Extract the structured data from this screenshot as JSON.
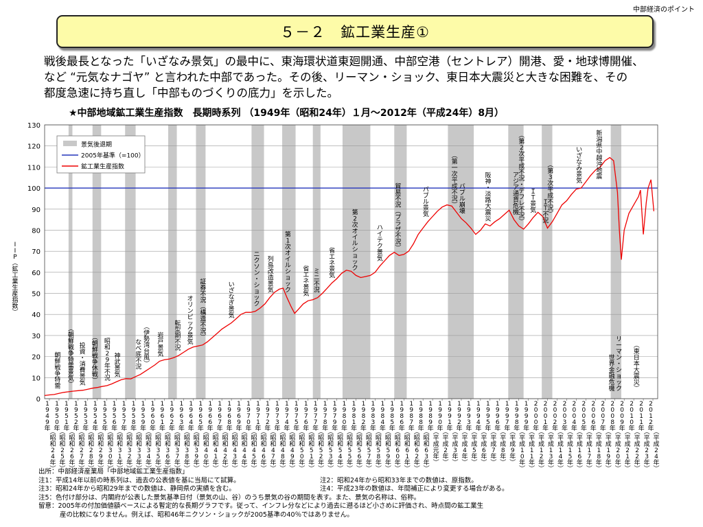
{
  "header": {
    "corner_label": "中部経済のポイント"
  },
  "title": "５－２　鉱工業生産①",
  "intro": [
    "戦後最長となった「いざなみ景気」の最中に、東海環状道東廻開通、中部空港（セントレア）開港、愛・地球博開催、",
    "など “元気なナゴヤ” と言われた中部であった。その後、リーマン・ショック、東日本大震災と大きな困難を、その",
    "都度急速に持ち直し「中部ものづくりの底力」を示した。"
  ],
  "chart_title": "★中部地域鉱工業生産指数　長期時系列 （1949年（昭和24年）１月～2012年（平成24年）8月）",
  "chart_data": {
    "type": "line",
    "ylabel": "IIP（鉱工業生産指数）",
    "ylim": [
      0,
      130
    ],
    "yticks": [
      0,
      10,
      20,
      30,
      40,
      50,
      60,
      70,
      80,
      90,
      100,
      110,
      120,
      130
    ],
    "grid": true,
    "legend_position": "top-left",
    "legend": [
      "景気後退期",
      "2005年基準（=100）",
      "鉱工業生産指数"
    ],
    "colors": {
      "series": "#ee0000",
      "base": "#2233bb",
      "recession": "#c8c8c8",
      "grid": "#999999"
    },
    "base_line": 100,
    "x_categories": [
      {
        "y": "1949年",
        "e": "昭和24年"
      },
      {
        "y": "1950年",
        "e": "昭和25年"
      },
      {
        "y": "1951年",
        "e": "昭和26年"
      },
      {
        "y": "1952年",
        "e": "昭和27年"
      },
      {
        "y": "1953年",
        "e": "昭和28年"
      },
      {
        "y": "1954年",
        "e": "昭和29年"
      },
      {
        "y": "1955年",
        "e": "昭和30年"
      },
      {
        "y": "1956年",
        "e": "昭和31年"
      },
      {
        "y": "1957年",
        "e": "昭和32年"
      },
      {
        "y": "1958年",
        "e": "昭和33年"
      },
      {
        "y": "1959年",
        "e": "昭和34年"
      },
      {
        "y": "1960年",
        "e": "昭和35年"
      },
      {
        "y": "1961年",
        "e": "昭和36年"
      },
      {
        "y": "1962年",
        "e": "昭和37年"
      },
      {
        "y": "1963年",
        "e": "昭和38年"
      },
      {
        "y": "1964年",
        "e": "昭和39年"
      },
      {
        "y": "1965年",
        "e": "昭和40年"
      },
      {
        "y": "1966年",
        "e": "昭和41年"
      },
      {
        "y": "1967年",
        "e": "昭和42年"
      },
      {
        "y": "1968年",
        "e": "昭和43年"
      },
      {
        "y": "1969年",
        "e": "昭和44年"
      },
      {
        "y": "1970年",
        "e": "昭和45年"
      },
      {
        "y": "1971年",
        "e": "昭和46年"
      },
      {
        "y": "1972年",
        "e": "昭和47年"
      },
      {
        "y": "1973年",
        "e": "昭和48年"
      },
      {
        "y": "1974年",
        "e": "昭和49年"
      },
      {
        "y": "1975年",
        "e": "昭和50年"
      },
      {
        "y": "1976年",
        "e": "昭和51年"
      },
      {
        "y": "1977年",
        "e": "昭和52年"
      },
      {
        "y": "1978年",
        "e": "昭和53年"
      },
      {
        "y": "1979年",
        "e": "昭和54年"
      },
      {
        "y": "1980年",
        "e": "昭和55年"
      },
      {
        "y": "1981年",
        "e": "昭和56年"
      },
      {
        "y": "1982年",
        "e": "昭和57年"
      },
      {
        "y": "1983年",
        "e": "昭和58年"
      },
      {
        "y": "1984年",
        "e": "昭和59年"
      },
      {
        "y": "1985年",
        "e": "昭和60年"
      },
      {
        "y": "1986年",
        "e": "昭和61年"
      },
      {
        "y": "1987年",
        "e": "昭和62年"
      },
      {
        "y": "1988年",
        "e": "昭和63年"
      },
      {
        "y": "1989年",
        "e": "平成元年"
      },
      {
        "y": "1990年",
        "e": "平成2年"
      },
      {
        "y": "1991年",
        "e": "平成3年"
      },
      {
        "y": "1992年",
        "e": "平成4年"
      },
      {
        "y": "1993年",
        "e": "平成5年"
      },
      {
        "y": "1994年",
        "e": "平成6年"
      },
      {
        "y": "1995年",
        "e": "平成7年"
      },
      {
        "y": "1996年",
        "e": "平成8年"
      },
      {
        "y": "1997年",
        "e": "平成9年"
      },
      {
        "y": "1998年",
        "e": "平成10年"
      },
      {
        "y": "1999年",
        "e": "平成11年"
      },
      {
        "y": "2000年",
        "e": "平成12年"
      },
      {
        "y": "2001年",
        "e": "平成13年"
      },
      {
        "y": "2002年",
        "e": "平成14年"
      },
      {
        "y": "2003年",
        "e": "平成15年"
      },
      {
        "y": "2004年",
        "e": "平成16年"
      },
      {
        "y": "2005年",
        "e": "平成17年"
      },
      {
        "y": "2006年",
        "e": "平成18年"
      },
      {
        "y": "2007年",
        "e": "平成19年"
      },
      {
        "y": "2008年",
        "e": "平成20年"
      },
      {
        "y": "2009年",
        "e": "平成21年"
      },
      {
        "y": "2010年",
        "e": "平成22年"
      },
      {
        "y": "2011年",
        "e": "平成23年"
      },
      {
        "y": "2012年",
        "e": "平成24年"
      }
    ],
    "recessions": [
      [
        1951.5,
        1951.9
      ],
      [
        1954.0,
        1954.9
      ],
      [
        1957.4,
        1958.5
      ],
      [
        1961.9,
        1962.8
      ],
      [
        1964.8,
        1965.8
      ],
      [
        1970.6,
        1971.9
      ],
      [
        1973.8,
        1975.2
      ],
      [
        1977.0,
        1977.8
      ],
      [
        1980.1,
        1983.0
      ],
      [
        1985.5,
        1986.8
      ],
      [
        1991.1,
        1993.8
      ],
      [
        1997.4,
        1999.0
      ],
      [
        2000.9,
        2002.0
      ],
      [
        2008.1,
        2009.2
      ]
    ],
    "series": [
      {
        "name": "鉱工業生産指数",
        "x": [
          1949.0,
          1949.5,
          1950.0,
          1950.5,
          1951.0,
          1951.5,
          1952.0,
          1952.5,
          1953.0,
          1953.5,
          1954.0,
          1954.5,
          1955.0,
          1955.5,
          1956.0,
          1956.5,
          1957.0,
          1957.5,
          1958.0,
          1958.5,
          1959.0,
          1959.5,
          1960.0,
          1960.5,
          1961.0,
          1961.5,
          1962.0,
          1962.5,
          1963.0,
          1963.5,
          1964.0,
          1964.5,
          1965.0,
          1965.5,
          1966.0,
          1966.5,
          1967.0,
          1967.5,
          1968.0,
          1968.5,
          1969.0,
          1969.5,
          1970.0,
          1970.5,
          1971.0,
          1971.5,
          1972.0,
          1972.5,
          1973.0,
          1973.5,
          1973.9,
          1974.3,
          1974.7,
          1975.1,
          1975.5,
          1976.0,
          1976.5,
          1977.0,
          1977.5,
          1978.0,
          1978.5,
          1979.0,
          1979.5,
          1980.0,
          1980.5,
          1981.0,
          1981.5,
          1982.0,
          1982.5,
          1983.0,
          1983.5,
          1984.0,
          1984.5,
          1985.0,
          1985.5,
          1986.0,
          1986.5,
          1987.0,
          1987.5,
          1988.0,
          1988.5,
          1989.0,
          1989.5,
          1990.0,
          1990.5,
          1991.0,
          1991.5,
          1992.0,
          1992.5,
          1993.0,
          1993.5,
          1994.0,
          1994.5,
          1995.0,
          1995.5,
          1996.0,
          1996.5,
          1997.0,
          1997.5,
          1998.0,
          1998.5,
          1999.0,
          1999.5,
          2000.0,
          2000.5,
          2001.0,
          2001.5,
          2002.0,
          2002.5,
          2003.0,
          2003.5,
          2004.0,
          2004.5,
          2005.0,
          2005.5,
          2006.0,
          2006.5,
          2007.0,
          2007.5,
          2008.0,
          2008.4,
          2008.8,
          2009.0,
          2009.2,
          2009.5,
          2010.0,
          2010.5,
          2011.0,
          2011.2,
          2011.5,
          2011.8,
          2012.0,
          2012.3,
          2012.6
        ],
        "values": [
          1.5,
          1.8,
          2.0,
          2.5,
          3.0,
          3.3,
          3.6,
          3.8,
          4.0,
          4.5,
          5.0,
          5.3,
          5.8,
          6.2,
          7.0,
          8.0,
          9.0,
          9.5,
          9.4,
          10.5,
          11.5,
          13.0,
          14.5,
          16.0,
          17.8,
          18.5,
          18.8,
          19.5,
          20.5,
          22.0,
          23.5,
          24.5,
          25.0,
          25.5,
          27.0,
          29.0,
          31.0,
          33.0,
          34.5,
          36.0,
          38.0,
          40.0,
          41.0,
          41.0,
          41.5,
          43.0,
          45.0,
          48.0,
          50.5,
          52.0,
          52.5,
          48.0,
          44.0,
          40.5,
          42.5,
          45.0,
          46.5,
          47.0,
          48.0,
          50.0,
          52.5,
          55.0,
          57.0,
          59.5,
          61.0,
          60.5,
          58.5,
          57.5,
          58.0,
          58.5,
          60.0,
          63.0,
          65.5,
          68.0,
          69.5,
          68.0,
          68.5,
          70.0,
          73.5,
          78.0,
          81.0,
          84.0,
          86.5,
          89.0,
          91.0,
          92.0,
          91.5,
          88.5,
          85.5,
          83.5,
          81.0,
          78.0,
          80.0,
          83.0,
          82.0,
          84.0,
          85.5,
          87.5,
          89.5,
          85.0,
          82.0,
          80.5,
          83.0,
          86.0,
          88.5,
          86.5,
          81.0,
          84.0,
          88.0,
          92.0,
          94.0,
          97.0,
          99.5,
          100.0,
          103.0,
          106.0,
          108.5,
          110.0,
          113.0,
          114.5,
          113.0,
          98.0,
          80.0,
          66.0,
          80.0,
          88.0,
          92.0,
          96.0,
          99.0,
          78.0,
          93.0,
          100.0,
          104.0,
          89.0
        ]
      }
    ],
    "annotations": [
      {
        "x": 1950.35,
        "text": "朝鮮戦争特需"
      },
      {
        "x": 1951.75,
        "text": "（朝鮮戦争特需景気）"
      },
      {
        "x": 1952.95,
        "text": "投資・消費景気"
      },
      {
        "x": 1954.25,
        "text": "（朝鮮戦争休戦）"
      },
      {
        "x": 1955.55,
        "text": "昭和29年不況"
      },
      {
        "x": 1956.6,
        "text": "神武景気"
      },
      {
        "x": 1958.8,
        "text": "なべ底不況"
      },
      {
        "x": 1959.65,
        "text": "（伊勢湾台風）"
      },
      {
        "x": 1961.1,
        "text": "岩戸景気"
      },
      {
        "x": 1962.9,
        "text": "転型期不況"
      },
      {
        "x": 1964.2,
        "text": "オリンピック景気"
      },
      {
        "x": 1965.55,
        "text": "証券不況（構造不況）"
      },
      {
        "x": 1968.5,
        "text": "いざなぎ景気"
      },
      {
        "x": 1971.15,
        "text": "ニクソン・ショック"
      },
      {
        "x": 1972.6,
        "text": "列島改造景気"
      },
      {
        "x": 1974.4,
        "text": "第1次オイルショック"
      },
      {
        "x": 1976.3,
        "text": "省エネ景気"
      },
      {
        "x": 1977.4,
        "text": "ミニ不況"
      },
      {
        "x": 1979.0,
        "text": "省エネ景気"
      },
      {
        "x": 1981.4,
        "text": "第2次オイルショック"
      },
      {
        "x": 1984.0,
        "text": "ハイテク景気"
      },
      {
        "x": 1985.9,
        "text": "貿易不況（プラザ不況）"
      },
      {
        "x": 1988.8,
        "text": "バブル景気"
      },
      {
        "x": 1991.8,
        "text": "（第一次平成不況）"
      },
      {
        "x": 1992.6,
        "text": "バブル崩壊"
      },
      {
        "x": 1995.3,
        "text": "阪神・淡路大震災"
      },
      {
        "x": 1998.2,
        "text": "アジア通貨危機"
      },
      {
        "x": 1998.8,
        "text": "（第2次平成不況・デフレ不況）"
      },
      {
        "x": 2000.0,
        "text": "ＩＴ景気"
      },
      {
        "x": 2001.3,
        "text": "ＩＴ不況"
      },
      {
        "x": 2001.8,
        "text": "（第3次平成不況）"
      },
      {
        "x": 2004.8,
        "text": "いざなみ景気"
      },
      {
        "x": 2006.9,
        "text": "新潟県中越沖地震"
      },
      {
        "x": 2008.2,
        "text": "世界金融危機"
      },
      {
        "x": 2008.95,
        "text": "リーマン・ショック"
      },
      {
        "x": 2010.8,
        "text": "（東日本大震災）"
      }
    ]
  },
  "notes": {
    "source": "出所：中部経済産業局「中部地域鉱工業生産指数」",
    "n1": "注1：平成14年以前の時系列は、過去の公表値を基に当局にて試算。",
    "n2": "注2：昭和24年から昭和33年までの数値は、原指数。",
    "n3": "注3：昭和24年から昭和29年までの数値は、静岡県の実績を含む。",
    "n4": "注4：平成23年の数値は、年間補正により変更する場合がある。",
    "n5": "注5：色付け部分は、内閣府が公表した景気基準日付（景気の山、谷）のうち景気の谷の期間を表す。また、景気の名称は、俗称。",
    "remark1": "留意：2005年の付加価値額ベースによる暫定的な長期グラフです。従って、インフレ分などにより過去に遡るほど小さめに評価され、時点間の鉱工業生",
    "remark2": "産の比較になりません。例えば、昭和46年ニクソン・ショックが2005基準の40％ではありません。"
  }
}
